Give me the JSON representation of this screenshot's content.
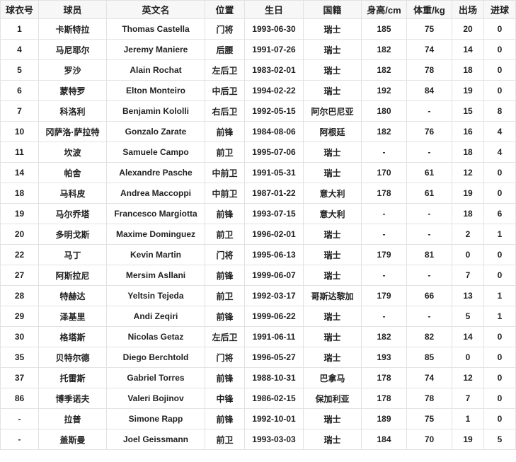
{
  "headers": [
    "球衣号",
    "球员",
    "英文名",
    "位置",
    "生日",
    "国籍",
    "身高/cm",
    "体重/kg",
    "出场",
    "进球"
  ],
  "rows": [
    [
      "1",
      "卡斯特拉",
      "Thomas Castella",
      "门将",
      "1993-06-30",
      "瑞士",
      "185",
      "75",
      "20",
      "0"
    ],
    [
      "4",
      "马尼耶尔",
      "Jeremy Maniere",
      "后腰",
      "1991-07-26",
      "瑞士",
      "182",
      "74",
      "14",
      "0"
    ],
    [
      "5",
      "罗沙",
      "Alain Rochat",
      "左后卫",
      "1983-02-01",
      "瑞士",
      "182",
      "78",
      "18",
      "0"
    ],
    [
      "6",
      "蒙特罗",
      "Elton Monteiro",
      "中后卫",
      "1994-02-22",
      "瑞士",
      "192",
      "84",
      "19",
      "0"
    ],
    [
      "7",
      "科洛利",
      "Benjamin Kololli",
      "右后卫",
      "1992-05-15",
      "阿尔巴尼亚",
      "180",
      "-",
      "15",
      "8"
    ],
    [
      "10",
      "冈萨洛·萨拉特",
      "Gonzalo Zarate",
      "前锋",
      "1984-08-06",
      "阿根廷",
      "182",
      "76",
      "16",
      "4"
    ],
    [
      "11",
      "坎波",
      "Samuele Campo",
      "前卫",
      "1995-07-06",
      "瑞士",
      "-",
      "-",
      "18",
      "4"
    ],
    [
      "14",
      "帕舍",
      "Alexandre Pasche",
      "中前卫",
      "1991-05-31",
      "瑞士",
      "170",
      "61",
      "12",
      "0"
    ],
    [
      "18",
      "马科皮",
      "Andrea Maccoppi",
      "中前卫",
      "1987-01-22",
      "意大利",
      "178",
      "61",
      "19",
      "0"
    ],
    [
      "19",
      "马尔乔塔",
      "Francesco Margiotta",
      "前锋",
      "1993-07-15",
      "意大利",
      "-",
      "-",
      "18",
      "6"
    ],
    [
      "20",
      "多明戈斯",
      "Maxime Dominguez",
      "前卫",
      "1996-02-01",
      "瑞士",
      "-",
      "-",
      "2",
      "1"
    ],
    [
      "22",
      "马丁",
      "Kevin Martin",
      "门将",
      "1995-06-13",
      "瑞士",
      "179",
      "81",
      "0",
      "0"
    ],
    [
      "27",
      "阿斯拉尼",
      "Mersim Asllani",
      "前锋",
      "1999-06-07",
      "瑞士",
      "-",
      "-",
      "7",
      "0"
    ],
    [
      "28",
      "特赫达",
      "Yeltsin Tejeda",
      "前卫",
      "1992-03-17",
      "哥斯达黎加",
      "179",
      "66",
      "13",
      "1"
    ],
    [
      "29",
      "泽基里",
      "Andi Zeqiri",
      "前锋",
      "1999-06-22",
      "瑞士",
      "-",
      "-",
      "5",
      "1"
    ],
    [
      "30",
      "格塔斯",
      "Nicolas Getaz",
      "左后卫",
      "1991-06-11",
      "瑞士",
      "182",
      "82",
      "14",
      "0"
    ],
    [
      "35",
      "贝特尔德",
      "Diego Berchtold",
      "门将",
      "1996-05-27",
      "瑞士",
      "193",
      "85",
      "0",
      "0"
    ],
    [
      "37",
      "托雷斯",
      "Gabriel Torres",
      "前锋",
      "1988-10-31",
      "巴拿马",
      "178",
      "74",
      "12",
      "0"
    ],
    [
      "86",
      "博季诺夫",
      "Valeri Bojinov",
      "中锋",
      "1986-02-15",
      "保加利亚",
      "178",
      "78",
      "7",
      "0"
    ],
    [
      "-",
      "拉普",
      "Simone Rapp",
      "前锋",
      "1992-10-01",
      "瑞士",
      "189",
      "75",
      "1",
      "0"
    ],
    [
      "-",
      "盖斯曼",
      "Joel Geissmann",
      "前卫",
      "1993-03-03",
      "瑞士",
      "184",
      "70",
      "19",
      "5"
    ]
  ]
}
